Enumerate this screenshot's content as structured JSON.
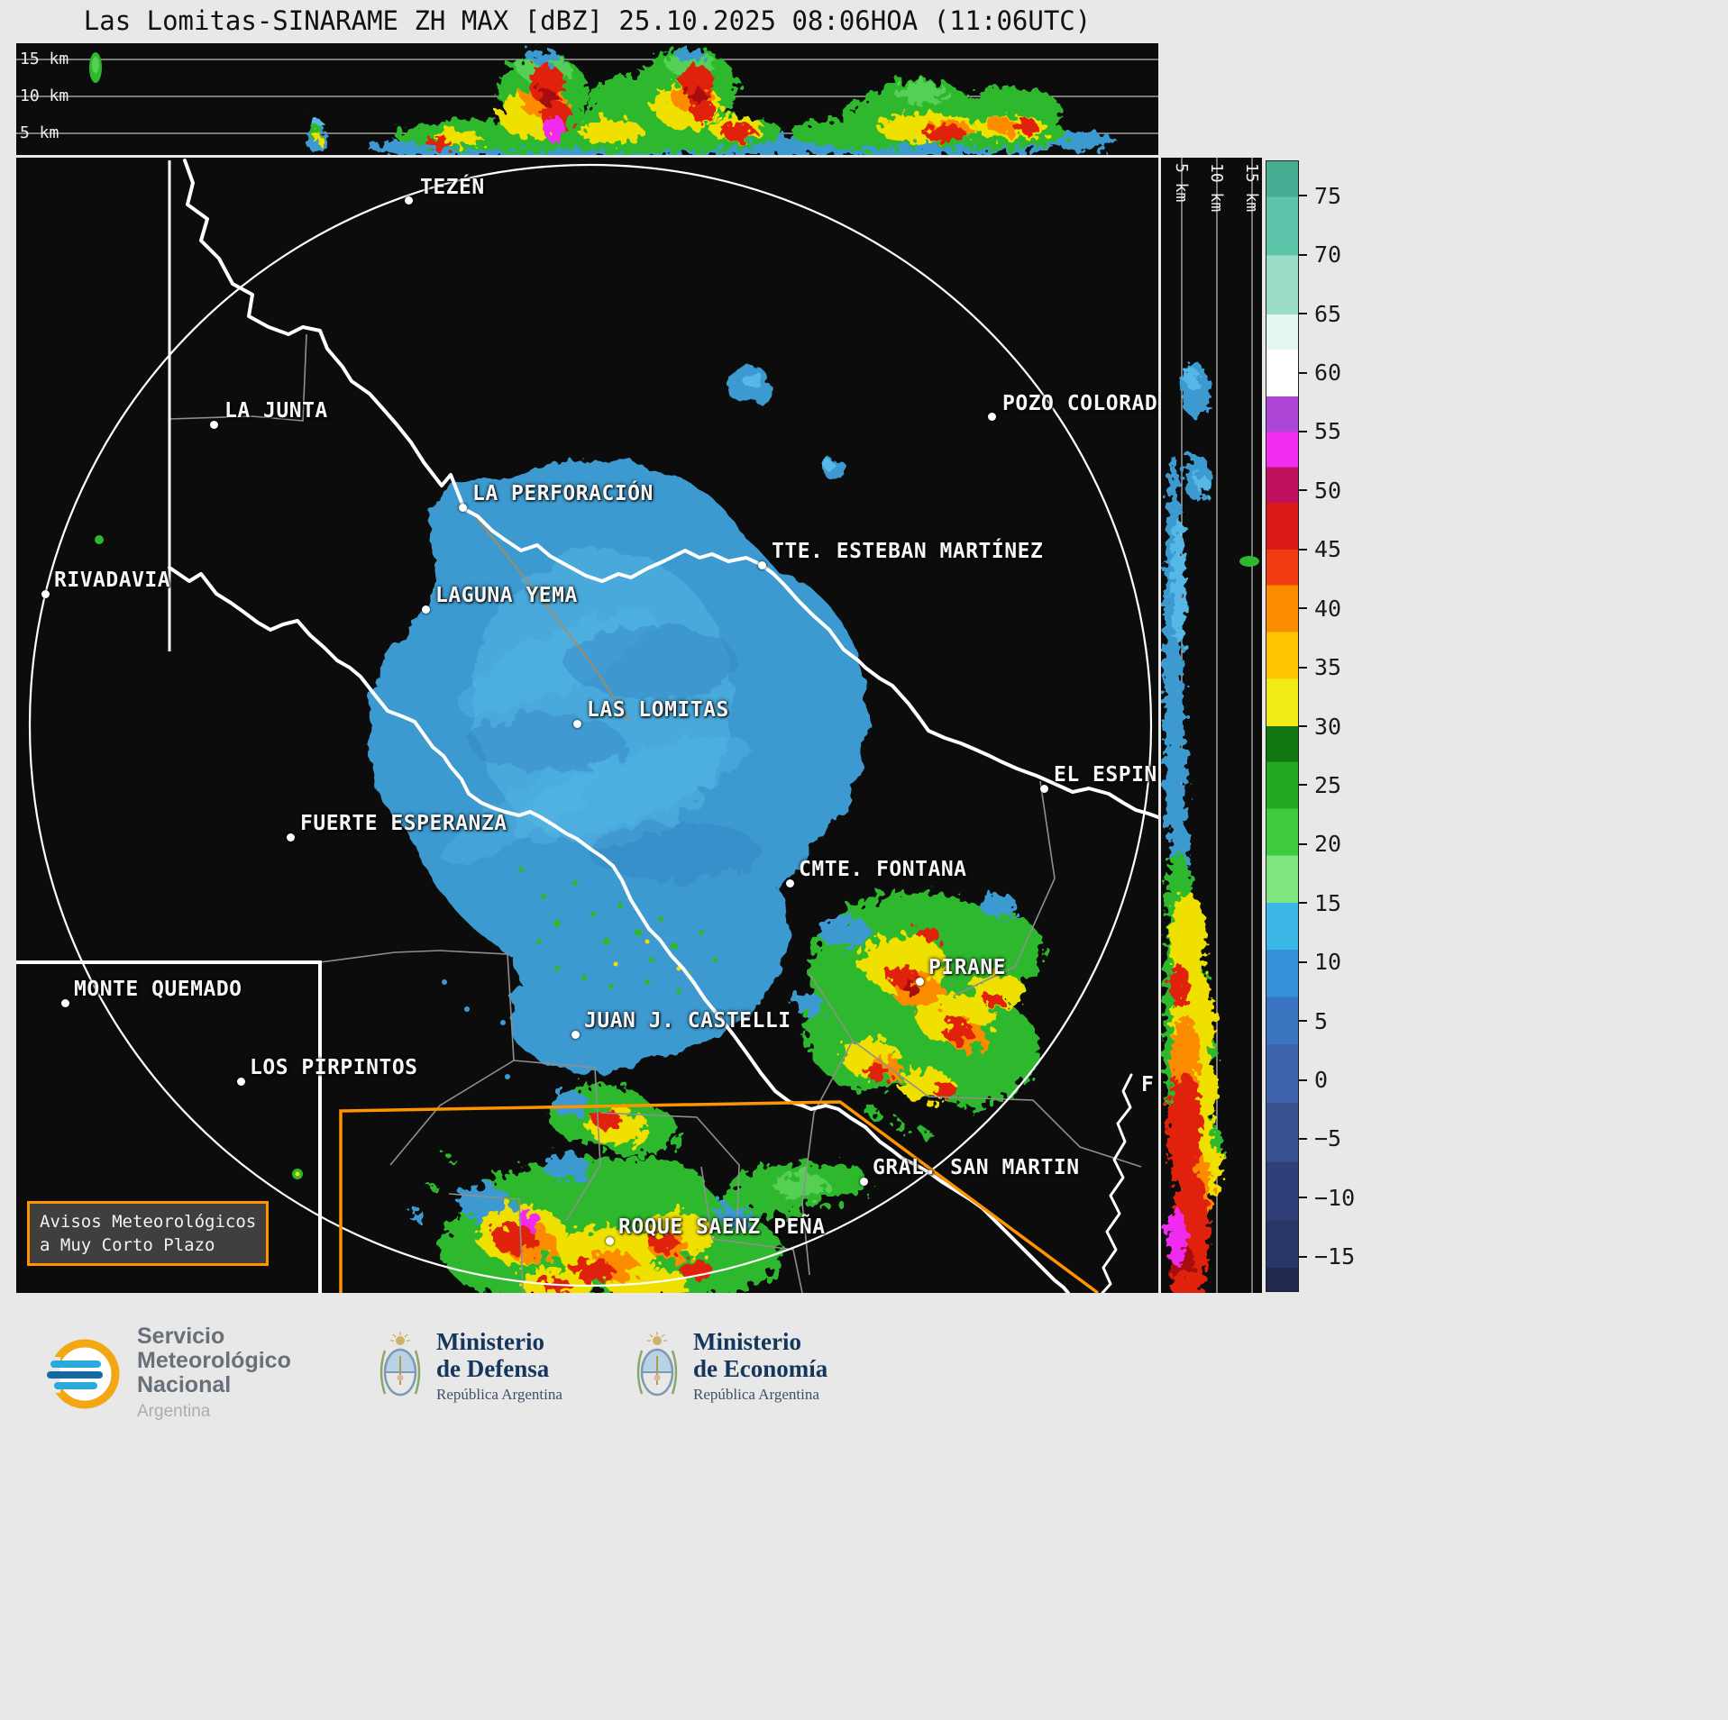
{
  "title": "Las Lomitas-SINARAME ZH MAX [dBZ] 25.10.2025 08:06HOA (11:06UTC)",
  "top_section": {
    "altitude_labels": [
      "15 km",
      "10 km",
      "5 km"
    ]
  },
  "right_section": {
    "altitude_labels": [
      "5 km",
      "10 km",
      "15 km"
    ]
  },
  "map": {
    "cities": [
      {
        "name": "TEZÉN",
        "dot": [
          435,
          47
        ],
        "label": [
          448,
          20
        ]
      },
      {
        "name": "LA JUNTA",
        "dot": [
          219,
          296
        ],
        "label": [
          231,
          268
        ]
      },
      {
        "name": "POZO COLORADO",
        "dot": [
          1082,
          287
        ],
        "label": [
          1094,
          260
        ]
      },
      {
        "name": "LA PERFORACIÓN",
        "dot": [
          495,
          388
        ],
        "label": [
          506,
          360
        ]
      },
      {
        "name": "TTE. ESTEBAN MARTÍNEZ",
        "dot": [
          827,
          452
        ],
        "label": [
          838,
          424
        ]
      },
      {
        "name": "RIVADAVIA",
        "dot": [
          32,
          484
        ],
        "label": [
          42,
          456
        ]
      },
      {
        "name": "LAGUNA YEMA",
        "dot": [
          454,
          501
        ],
        "label": [
          465,
          473
        ]
      },
      {
        "name": "LAS LOMITAS",
        "dot": [
          622,
          628
        ],
        "label": [
          633,
          600
        ]
      },
      {
        "name": "EL ESPIN",
        "dot": [
          1140,
          700
        ],
        "label": [
          1151,
          672
        ]
      },
      {
        "name": "FUERTE ESPERANZA",
        "dot": [
          304,
          754
        ],
        "label": [
          315,
          726
        ]
      },
      {
        "name": "CMTE. FONTANA",
        "dot": [
          858,
          805
        ],
        "label": [
          868,
          777
        ]
      },
      {
        "name": "MONTE QUEMADO",
        "dot": [
          54,
          938
        ],
        "label": [
          64,
          910
        ]
      },
      {
        "name": "PIRANE",
        "dot": [
          1002,
          914
        ],
        "label": [
          1012,
          886
        ]
      },
      {
        "name": "JUAN J. CASTELLI",
        "dot": [
          620,
          973
        ],
        "label": [
          630,
          945
        ]
      },
      {
        "name": "LOS PIRPINTOS",
        "dot": [
          249,
          1025
        ],
        "label": [
          259,
          997
        ]
      },
      {
        "name": "GRAL. SAN MARTIN",
        "dot": [
          940,
          1136
        ],
        "label": [
          950,
          1108
        ]
      },
      {
        "name": "ROQUE SAENZ PEÑA",
        "dot": [
          658,
          1202
        ],
        "label": [
          668,
          1174
        ]
      },
      {
        "name": "F",
        "dot": null,
        "label": [
          1248,
          1016
        ]
      }
    ]
  },
  "notice": {
    "line1": "Avisos Meteorológicos",
    "line2": "a Muy Corto Plazo"
  },
  "colorbar": {
    "unit": "dBZ",
    "value_range": [
      78,
      -18
    ],
    "ticks": [
      {
        "value": 75,
        "label": "75"
      },
      {
        "value": 70,
        "label": "70"
      },
      {
        "value": 65,
        "label": "65"
      },
      {
        "value": 60,
        "label": "60"
      },
      {
        "value": 55,
        "label": "55"
      },
      {
        "value": 50,
        "label": "50"
      },
      {
        "value": 45,
        "label": "45"
      },
      {
        "value": 40,
        "label": "40"
      },
      {
        "value": 35,
        "label": "35"
      },
      {
        "value": 30,
        "label": "30"
      },
      {
        "value": 25,
        "label": "25"
      },
      {
        "value": 20,
        "label": "20"
      },
      {
        "value": 15,
        "label": "15"
      },
      {
        "value": 10,
        "label": "10"
      },
      {
        "value": 5,
        "label": "5"
      },
      {
        "value": 0,
        "label": "0"
      },
      {
        "value": -5,
        "label": "−5"
      },
      {
        "value": -10,
        "label": "−10"
      },
      {
        "value": -15,
        "label": "−15"
      }
    ],
    "stops": [
      {
        "from": 78,
        "to": 75,
        "color": "#44ad92"
      },
      {
        "from": 75,
        "to": 70,
        "color": "#5cc5aa"
      },
      {
        "from": 70,
        "to": 65,
        "color": "#9adec9"
      },
      {
        "from": 65,
        "to": 62,
        "color": "#e6f7f0"
      },
      {
        "from": 62,
        "to": 58,
        "color": "#ffffff"
      },
      {
        "from": 58,
        "to": 55,
        "color": "#ad46d6"
      },
      {
        "from": 55,
        "to": 52,
        "color": "#f02df0"
      },
      {
        "from": 52,
        "to": 49,
        "color": "#c01060"
      },
      {
        "from": 49,
        "to": 45,
        "color": "#dd1a1a"
      },
      {
        "from": 45,
        "to": 42,
        "color": "#f03c10"
      },
      {
        "from": 42,
        "to": 38,
        "color": "#fb8c00"
      },
      {
        "from": 38,
        "to": 34,
        "color": "#ffc400"
      },
      {
        "from": 34,
        "to": 30,
        "color": "#f2ea16"
      },
      {
        "from": 30,
        "to": 27,
        "color": "#117711"
      },
      {
        "from": 27,
        "to": 23,
        "color": "#22aa22"
      },
      {
        "from": 23,
        "to": 19,
        "color": "#3ecc3e"
      },
      {
        "from": 19,
        "to": 15,
        "color": "#7fe57f"
      },
      {
        "from": 15,
        "to": 11,
        "color": "#3cb8e8"
      },
      {
        "from": 11,
        "to": 7,
        "color": "#3490d8"
      },
      {
        "from": 7,
        "to": 3,
        "color": "#3a74c0"
      },
      {
        "from": 3,
        "to": -2,
        "color": "#3f63ac"
      },
      {
        "from": -2,
        "to": -7,
        "color": "#39518f"
      },
      {
        "from": -7,
        "to": -12,
        "color": "#2f4078"
      },
      {
        "from": -12,
        "to": -16,
        "color": "#283567"
      },
      {
        "from": -16,
        "to": -18,
        "color": "#20284e"
      }
    ]
  },
  "footer": {
    "smn": {
      "line1": "Servicio",
      "line2": "Meteorológico",
      "line3": "Nacional",
      "country": "Argentina"
    },
    "defensa": {
      "line1": "Ministerio",
      "line2": "de Defensa",
      "sub": "República Argentina"
    },
    "economia": {
      "line1": "Ministerio",
      "line2": "de Economía",
      "sub": "República Argentina"
    }
  }
}
